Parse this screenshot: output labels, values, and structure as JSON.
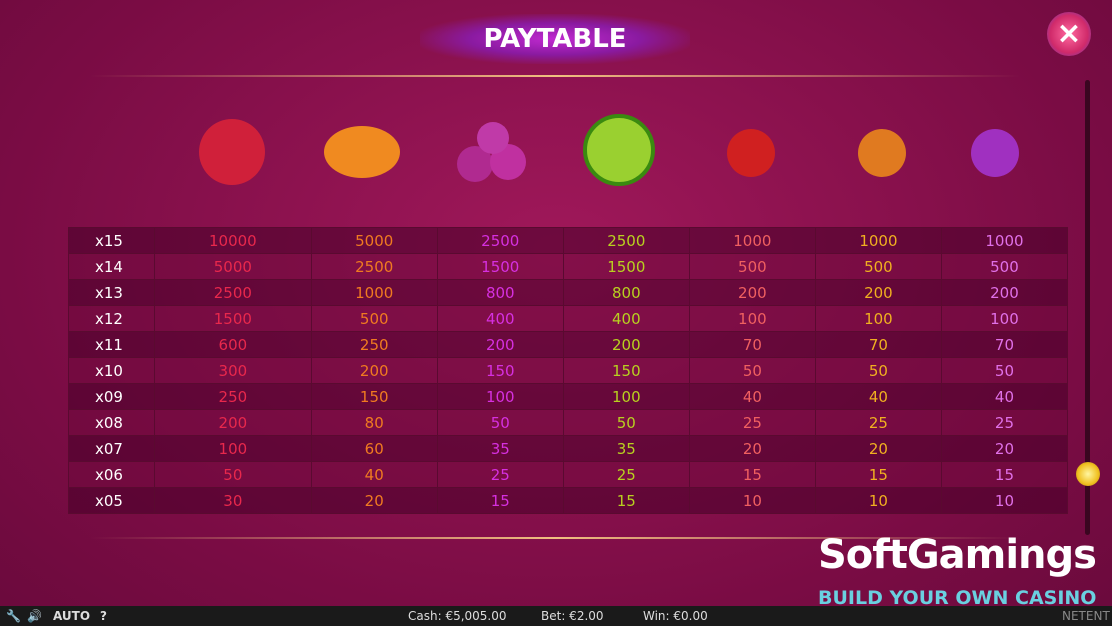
{
  "header": {
    "title": "PAYTABLE"
  },
  "table": {
    "rows": [
      {
        "label": "x15",
        "values": [
          10000,
          5000,
          2500,
          2500,
          1000,
          1000,
          1000
        ]
      },
      {
        "label": "x14",
        "values": [
          5000,
          2500,
          1500,
          1500,
          500,
          500,
          500
        ]
      },
      {
        "label": "x13",
        "values": [
          2500,
          1000,
          800,
          800,
          200,
          200,
          200
        ]
      },
      {
        "label": "x12",
        "values": [
          1500,
          500,
          400,
          400,
          100,
          100,
          100
        ]
      },
      {
        "label": "x11",
        "values": [
          600,
          250,
          200,
          200,
          70,
          70,
          70
        ]
      },
      {
        "label": "x10",
        "values": [
          300,
          200,
          150,
          150,
          50,
          50,
          50
        ]
      },
      {
        "label": "x09",
        "values": [
          250,
          150,
          100,
          100,
          40,
          40,
          40
        ]
      },
      {
        "label": "x08",
        "values": [
          200,
          80,
          50,
          50,
          25,
          25,
          25
        ]
      },
      {
        "label": "x07",
        "values": [
          100,
          60,
          35,
          35,
          20,
          20,
          20
        ]
      },
      {
        "label": "x06",
        "values": [
          50,
          40,
          25,
          25,
          15,
          15,
          15
        ]
      },
      {
        "label": "x05",
        "values": [
          30,
          20,
          15,
          15,
          10,
          10,
          10
        ]
      }
    ]
  },
  "footer": {
    "auto": "AUTO",
    "help": "?",
    "cash": "Cash: €5,005.00",
    "bet": "Bet: €2.00",
    "win": "Win: €0.00",
    "brand": "NETENT"
  },
  "watermark": {
    "name": "SoftGamings",
    "tagline": "BUILD YOUR OWN CASINO"
  }
}
